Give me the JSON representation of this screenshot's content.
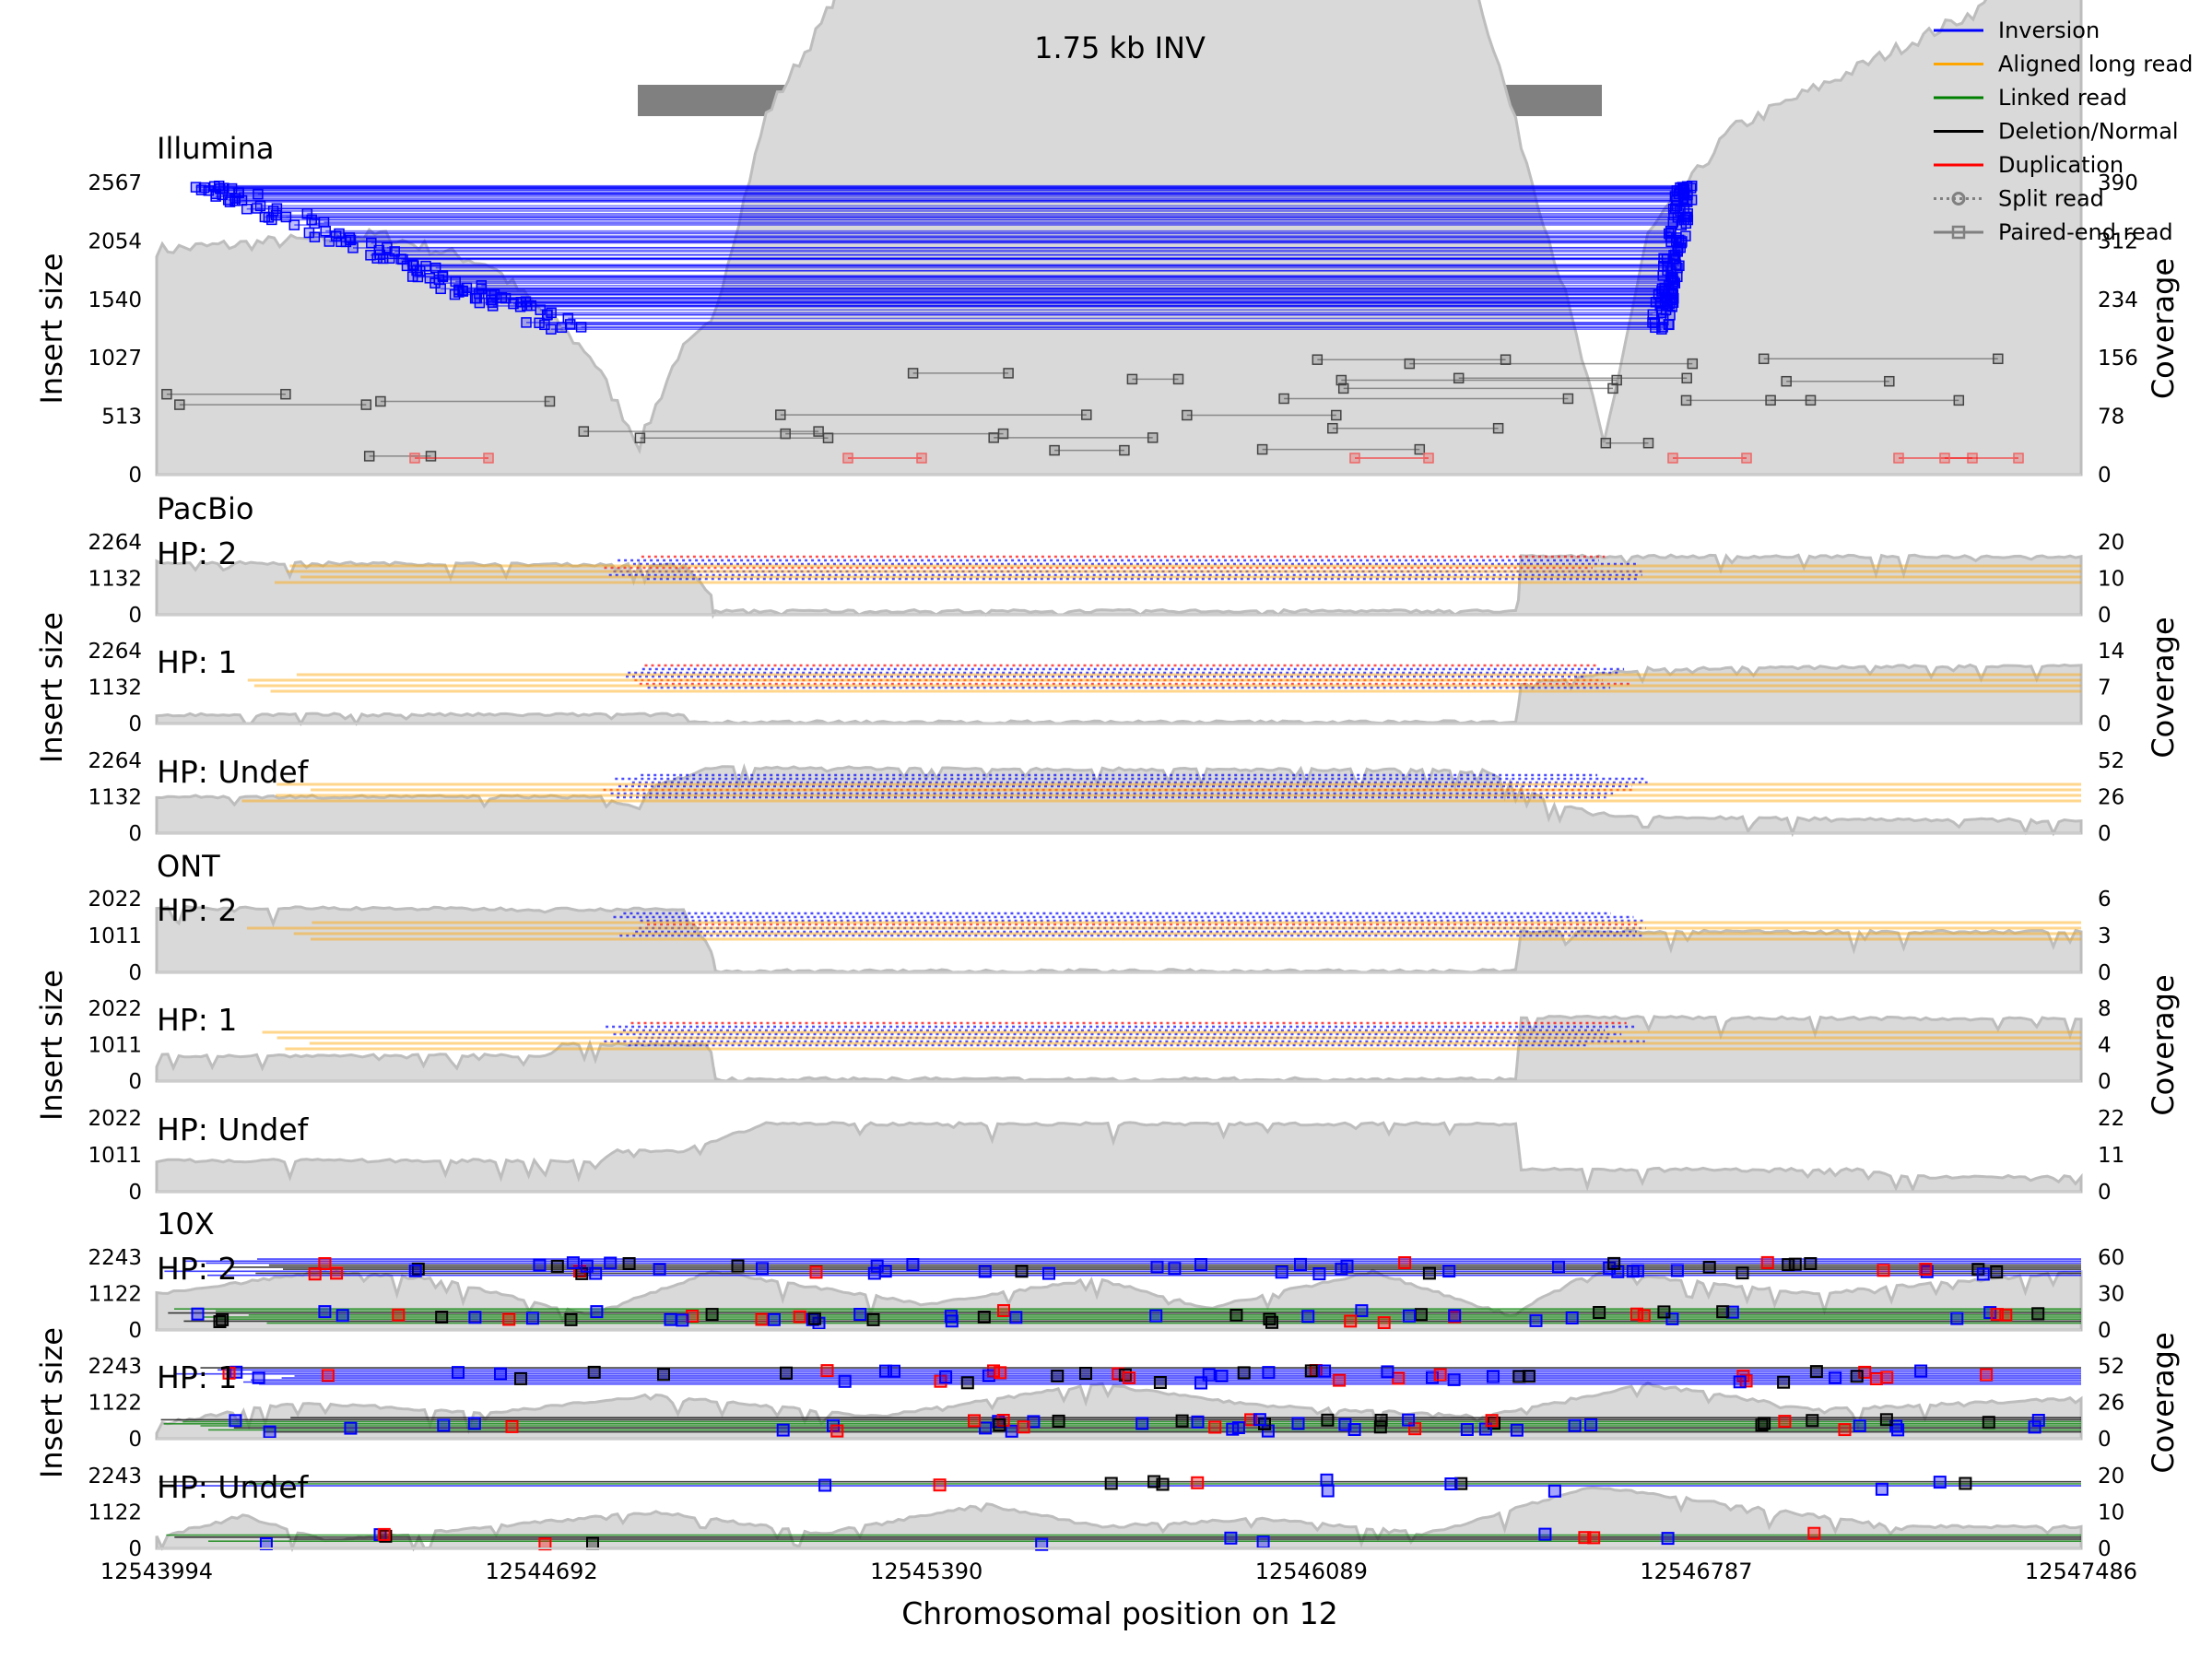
{
  "chart_data": {
    "type": "line",
    "title": "1.75 kb INV",
    "xlabel": "Chromosomal position on 12",
    "x_ticks": [
      "12543994",
      "12544692",
      "12545390",
      "12546089",
      "12546787",
      "12547486"
    ],
    "xlim": [
      12543994,
      12547486
    ],
    "sv_region": [
      12544870,
      12546620
    ],
    "legend_position": "top-right",
    "legend": [
      {
        "label": "Inversion",
        "color": "#0000ff",
        "style": "line"
      },
      {
        "label": "Aligned long read",
        "color": "#ffa500",
        "style": "line"
      },
      {
        "label": "Linked read",
        "color": "#008000",
        "style": "line"
      },
      {
        "label": "Deletion/Normal",
        "color": "#000000",
        "style": "line"
      },
      {
        "label": "Duplication",
        "color": "#ff0000",
        "style": "line"
      },
      {
        "label": "Split read",
        "color": "#808080",
        "style": "dotted-circle"
      },
      {
        "label": "Paired-end read",
        "color": "#808080",
        "style": "line-square"
      }
    ],
    "groups": [
      {
        "name": "Illumina",
        "ylabel": "Insert size",
        "y2label": "Coverage",
        "panels": [
          {
            "hp": "",
            "kind": "illumina",
            "y_ticks": [
              "2567",
              "2054",
              "1540",
              "1027",
              "513",
              "0"
            ],
            "cov_ticks": [
              "390",
              "312",
              "234",
              "156",
              "78",
              "0"
            ],
            "coverage": [
              [
                12543994,
                300
              ],
              [
                12544400,
                320
              ],
              [
                12544600,
                280
              ],
              [
                12544780,
                160
              ],
              [
                12544870,
                40
              ],
              [
                12544940,
                160
              ],
              [
                12545000,
                200
              ],
              [
                12545100,
                480
              ],
              [
                12545200,
                600
              ],
              [
                12545300,
                760
              ],
              [
                12545390,
                680
              ],
              [
                12545500,
                860
              ],
              [
                12545700,
                1000
              ],
              [
                12545900,
                900
              ],
              [
                12546089,
                830
              ],
              [
                12546250,
                950
              ],
              [
                12546400,
                620
              ],
              [
                12546550,
                240
              ],
              [
                12546620,
                40
              ],
              [
                12546700,
                320
              ],
              [
                12546850,
                460
              ],
              [
                12547100,
                550
              ],
              [
                12547300,
                620
              ],
              [
                12547486,
                780
              ]
            ]
          }
        ]
      },
      {
        "name": "PacBio",
        "ylabel": "Insert size",
        "y2label": "Coverage",
        "panels": [
          {
            "hp": "HP: 2",
            "kind": "long",
            "y_ticks": [
              "2264",
              "1132",
              "0"
            ],
            "cov_ticks": [
              "20",
              "10",
              "0"
            ],
            "coverage": [
              [
                12543994,
                0.72
              ],
              [
                12544950,
                0.68
              ],
              [
                12545000,
                0.28
              ],
              [
                12545008,
                0.05
              ],
              [
                12546460,
                0.05
              ],
              [
                12546470,
                0.8
              ],
              [
                12547486,
                0.8
              ]
            ]
          },
          {
            "hp": "HP: 1",
            "kind": "long",
            "y_ticks": [
              "2264",
              "1132",
              "0"
            ],
            "cov_ticks": [
              "14",
              "7",
              "0"
            ],
            "coverage": [
              [
                12543994,
                0.12
              ],
              [
                12544950,
                0.12
              ],
              [
                12544960,
                0.02
              ],
              [
                12546460,
                0.02
              ],
              [
                12546470,
                0.55
              ],
              [
                12546700,
                0.75
              ],
              [
                12547486,
                0.8
              ]
            ]
          },
          {
            "hp": "HP: Undef",
            "kind": "long",
            "y_ticks": [
              "2264",
              "1132",
              "0"
            ],
            "cov_ticks": [
              "52",
              "26",
              "0"
            ],
            "coverage": [
              [
                12543994,
                0.5
              ],
              [
                12544800,
                0.5
              ],
              [
                12544870,
                0.32
              ],
              [
                12544890,
                0.62
              ],
              [
                12545000,
                0.9
              ],
              [
                12546400,
                0.86
              ],
              [
                12546530,
                0.4
              ],
              [
                12546650,
                0.22
              ],
              [
                12547486,
                0.17
              ]
            ]
          }
        ]
      },
      {
        "name": "ONT",
        "ylabel": "Insert size",
        "y2label": "Coverage",
        "panels": [
          {
            "hp": "HP: 2",
            "kind": "long",
            "y_ticks": [
              "2022",
              "1011",
              "0"
            ],
            "cov_ticks": [
              "6",
              "3",
              "0"
            ],
            "coverage": [
              [
                12543994,
                0.88
              ],
              [
                12544950,
                0.85
              ],
              [
                12545000,
                0.3
              ],
              [
                12545008,
                0.02
              ],
              [
                12546460,
                0.02
              ],
              [
                12546470,
                0.55
              ],
              [
                12547486,
                0.55
              ]
            ]
          },
          {
            "hp": "HP: 1",
            "kind": "long",
            "y_ticks": [
              "2022",
              "1011",
              "0"
            ],
            "cov_ticks": [
              "8",
              "4",
              "0"
            ],
            "coverage": [
              [
                12543994,
                0.35
              ],
              [
                12544700,
                0.35
              ],
              [
                12544730,
                0.5
              ],
              [
                12545000,
                0.5
              ],
              [
                12545008,
                0.03
              ],
              [
                12546460,
                0.03
              ],
              [
                12546470,
                0.88
              ],
              [
                12547486,
                0.85
              ]
            ]
          },
          {
            "hp": "HP: Undef",
            "kind": "coverage",
            "y_ticks": [
              "2022",
              "1011",
              "0"
            ],
            "cov_ticks": [
              "22",
              "11",
              "0"
            ],
            "coverage": [
              [
                12543994,
                0.42
              ],
              [
                12544800,
                0.42
              ],
              [
                12544830,
                0.55
              ],
              [
                12544950,
                0.55
              ],
              [
                12545000,
                0.68
              ],
              [
                12545100,
                0.92
              ],
              [
                12546460,
                0.92
              ],
              [
                12546470,
                0.3
              ],
              [
                12547100,
                0.3
              ],
              [
                12547150,
                0.2
              ],
              [
                12547486,
                0.2
              ]
            ]
          }
        ]
      },
      {
        "name": "10X",
        "ylabel": "Insert size",
        "y2label": "Coverage",
        "panels": [
          {
            "hp": "HP: 2",
            "kind": "linked",
            "y_ticks": [
              "2243",
              "1122",
              "0"
            ],
            "cov_ticks": [
              "60",
              "30",
              "0"
            ],
            "coverage": [
              [
                12543994,
                0.5
              ],
              [
                12544300,
                0.8
              ],
              [
                12544500,
                0.7
              ],
              [
                12544780,
                0.2
              ],
              [
                12545000,
                0.8
              ],
              [
                12545390,
                0.35
              ],
              [
                12545700,
                0.7
              ],
              [
                12545900,
                0.3
              ],
              [
                12546200,
                0.8
              ],
              [
                12546450,
                0.2
              ],
              [
                12546600,
                0.8
              ],
              [
                12547000,
                0.5
              ],
              [
                12547486,
                0.8
              ]
            ]
          },
          {
            "hp": "HP: 1",
            "kind": "linked",
            "y_ticks": [
              "2243",
              "1122",
              "0"
            ],
            "cov_ticks": [
              "52",
              "26",
              "0"
            ],
            "coverage": [
              [
                12543994,
                0.2
              ],
              [
                12544250,
                0.5
              ],
              [
                12544600,
                0.35
              ],
              [
                12544900,
                0.6
              ],
              [
                12545300,
                0.3
              ],
              [
                12545700,
                0.75
              ],
              [
                12546000,
                0.45
              ],
              [
                12546400,
                0.3
              ],
              [
                12546700,
                0.75
              ],
              [
                12547000,
                0.4
              ],
              [
                12547486,
                0.55
              ]
            ]
          },
          {
            "hp": "HP: Undef",
            "kind": "linked-sparse",
            "y_ticks": [
              "2243",
              "1122",
              "0"
            ],
            "cov_ticks": [
              "20",
              "10",
              "0"
            ],
            "coverage": [
              [
                12543994,
                0.15
              ],
              [
                12544150,
                0.45
              ],
              [
                12544300,
                0.1
              ],
              [
                12544600,
                0.3
              ],
              [
                12544900,
                0.5
              ],
              [
                12545200,
                0.2
              ],
              [
                12545500,
                0.6
              ],
              [
                12545700,
                0.3
              ],
              [
                12546000,
                0.4
              ],
              [
                12546300,
                0.2
              ],
              [
                12546600,
                0.85
              ],
              [
                12546850,
                0.6
              ],
              [
                12547150,
                0.3
              ],
              [
                12547486,
                0.3
              ]
            ]
          }
        ]
      }
    ]
  }
}
